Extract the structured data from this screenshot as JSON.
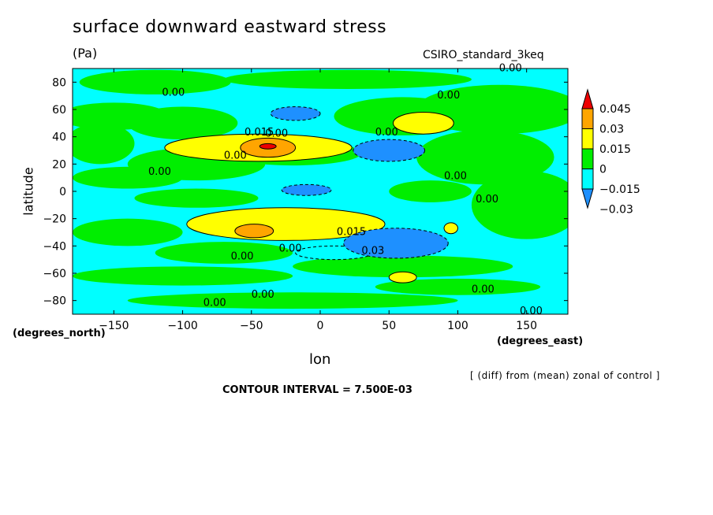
{
  "header": {
    "title": "surface downward eastward stress",
    "units": "(Pa)",
    "dataset": "CSIRO_standard_3keq"
  },
  "footer": {
    "note": "[ (diff) from (mean) zonal of control ]",
    "contour_interval": "CONTOUR INTERVAL = 7.500E-03"
  },
  "chart_data": {
    "type": "heatmap",
    "title": "surface downward eastward stress",
    "subtitle": "(Pa)",
    "xlabel": "lon",
    "ylabel": "latitude",
    "x_units": "(degrees_east)",
    "y_units": "(degrees_north)",
    "xlim": [
      -180,
      180
    ],
    "ylim": [
      -90,
      90
    ],
    "x_ticks": [
      -150,
      -100,
      -50,
      0,
      50,
      100,
      150
    ],
    "y_ticks": [
      80,
      60,
      40,
      20,
      0,
      -20,
      -40,
      -60,
      -80
    ],
    "x_tick_labels": [
      "−150",
      "−100",
      "−50",
      "0",
      "50",
      "100",
      "150"
    ],
    "y_tick_labels": [
      "80",
      "60",
      "40",
      "20",
      "0",
      "−20",
      "−40",
      "−60",
      "−80"
    ],
    "colorbar": {
      "levels": [
        -0.03,
        -0.015,
        0,
        0.015,
        0.03,
        0.045
      ],
      "labels": [
        "−0.03",
        "−0.015",
        "0",
        "0.015",
        "0.03",
        "0.045"
      ],
      "colors": [
        "#1e90ff",
        "#00ffff",
        "#00ee00",
        "#ffff00",
        "#ffa500",
        "#ee0000"
      ],
      "extend": "both"
    },
    "features": [
      {
        "kind": "positive",
        "level": 0.045,
        "lon": -38,
        "lat": 33,
        "rlon": 6,
        "rlat": 2
      },
      {
        "kind": "positive",
        "level": 0.03,
        "lon": -38,
        "lat": 32,
        "rlon": 20,
        "rlat": 7
      },
      {
        "kind": "positive",
        "level": 0.015,
        "lon": -45,
        "lat": 32,
        "rlon": 68,
        "rlat": 10
      },
      {
        "kind": "positive",
        "level": 0.03,
        "lon": -48,
        "lat": -29,
        "rlon": 14,
        "rlat": 5
      },
      {
        "kind": "positive",
        "level": 0.015,
        "lon": -25,
        "lat": -24,
        "rlon": 72,
        "rlat": 12
      },
      {
        "kind": "positive",
        "level": 0.015,
        "lon": 75,
        "lat": 50,
        "rlon": 22,
        "rlat": 8
      },
      {
        "kind": "positive",
        "level": 0.015,
        "lon": 60,
        "lat": -63,
        "rlon": 10,
        "rlat": 4
      },
      {
        "kind": "positive",
        "level": 0.015,
        "lon": 95,
        "lat": -27,
        "rlon": 5,
        "rlat": 4
      },
      {
        "kind": "negative",
        "level": -0.03,
        "lon": 50,
        "lat": 30,
        "rlon": 26,
        "rlat": 8
      },
      {
        "kind": "negative",
        "level": -0.03,
        "lon": 55,
        "lat": -38,
        "rlon": 38,
        "rlat": 11
      },
      {
        "kind": "negative",
        "level": -0.03,
        "lon": -18,
        "lat": 57,
        "rlon": 18,
        "rlat": 5
      },
      {
        "kind": "negative",
        "level": -0.03,
        "lon": -10,
        "lat": 1,
        "rlon": 18,
        "rlat": 4
      },
      {
        "kind": "negative",
        "level": -0.015,
        "lon": 10,
        "lat": -45,
        "rlon": 28,
        "rlat": 5
      }
    ],
    "contour_labels": [
      "0.00",
      "0.015",
      "0.03"
    ],
    "grid": false,
    "legend": "right"
  }
}
